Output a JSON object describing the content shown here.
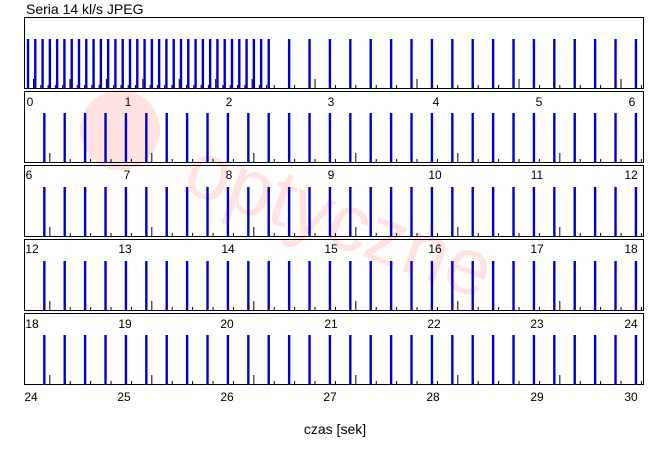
{
  "chart_data": {
    "type": "bar",
    "title": "Seria 14 kl/s JPEG",
    "xlabel": "czas [sek]",
    "ylabel": "",
    "grid": false,
    "legend": "none",
    "colors": {
      "shot": "#0000cc",
      "marker": "#000000"
    },
    "rows": [
      {
        "xlim": [
          0,
          6
        ],
        "ticks": [
          "0",
          "1",
          "2",
          "3",
          "4",
          "5",
          "6"
        ]
      },
      {
        "xlim": [
          6,
          12
        ],
        "ticks": [
          "6",
          "7",
          "8",
          "9",
          "10",
          "11",
          "12"
        ]
      },
      {
        "xlim": [
          12,
          18
        ],
        "ticks": [
          "12",
          "13",
          "14",
          "15",
          "16",
          "17",
          "18"
        ]
      },
      {
        "xlim": [
          18,
          24
        ],
        "ticks": [
          "18",
          "19",
          "20",
          "21",
          "22",
          "23",
          "24"
        ]
      },
      {
        "xlim": [
          24,
          30
        ],
        "ticks": [
          "24",
          "25",
          "26",
          "27",
          "28",
          "29",
          "30"
        ]
      }
    ],
    "series": [
      {
        "name": "",
        "burst_rate_fps": 14.0,
        "burst_interval": [
          0.0,
          2.3
        ],
        "sustained_rate_fps": 5.0,
        "sustained_interval": [
          2.3,
          30.1
        ]
      }
    ]
  }
}
